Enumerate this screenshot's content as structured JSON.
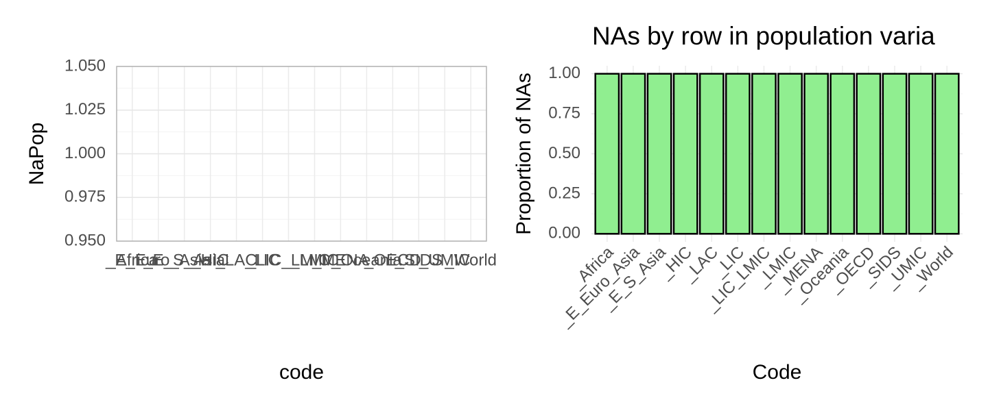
{
  "chart_data": [
    {
      "type": "bar",
      "y_label": "NaPop",
      "x_label": "code",
      "categories": [
        "_Africa",
        "_E_Euro_Asia",
        "_E_S_Asia",
        "_HIC",
        "_LAC",
        "_LIC",
        "_LIC_LMIC",
        "_LMIC",
        "_MENA",
        "_Oceania",
        "_OECD",
        "_SIDS",
        "_UMIC",
        "_World"
      ],
      "values": [
        null,
        null,
        null,
        null,
        null,
        null,
        null,
        null,
        null,
        null,
        null,
        null,
        null,
        null
      ],
      "ylim": [
        0.95,
        1.05
      ],
      "yticks": [
        {
          "value": 0.95,
          "label": "0.950"
        },
        {
          "value": 0.975,
          "label": "0.975"
        },
        {
          "value": 1.0,
          "label": "1.000"
        },
        {
          "value": 1.025,
          "label": "1.025"
        },
        {
          "value": 1.05,
          "label": "1.050"
        }
      ],
      "grid": true
    },
    {
      "type": "bar",
      "title": "NAs by row in population varia",
      "y_label": "Proportion of NAs",
      "x_label": "Code",
      "categories": [
        "_Africa",
        "_E_Euro_Asia",
        "_E_S_Asia",
        "_HIC",
        "_LAC",
        "_LIC",
        "_LIC_LMIC",
        "_LMIC",
        "_MENA",
        "_Oceania",
        "_OECD",
        "_SIDS",
        "_UMIC",
        "_World"
      ],
      "values": [
        1,
        1,
        1,
        1,
        1,
        1,
        1,
        1,
        1,
        1,
        1,
        1,
        1,
        1
      ],
      "color": "#90ee90",
      "ylim": [
        -0.05,
        1.05
      ],
      "yticks": [
        {
          "value": 0,
          "label": "0.00"
        },
        {
          "value": 0.25,
          "label": "0.25"
        },
        {
          "value": 0.5,
          "label": "0.50"
        },
        {
          "value": 0.75,
          "label": "0.75"
        },
        {
          "value": 1,
          "label": "1.00"
        }
      ],
      "grid": true
    }
  ]
}
